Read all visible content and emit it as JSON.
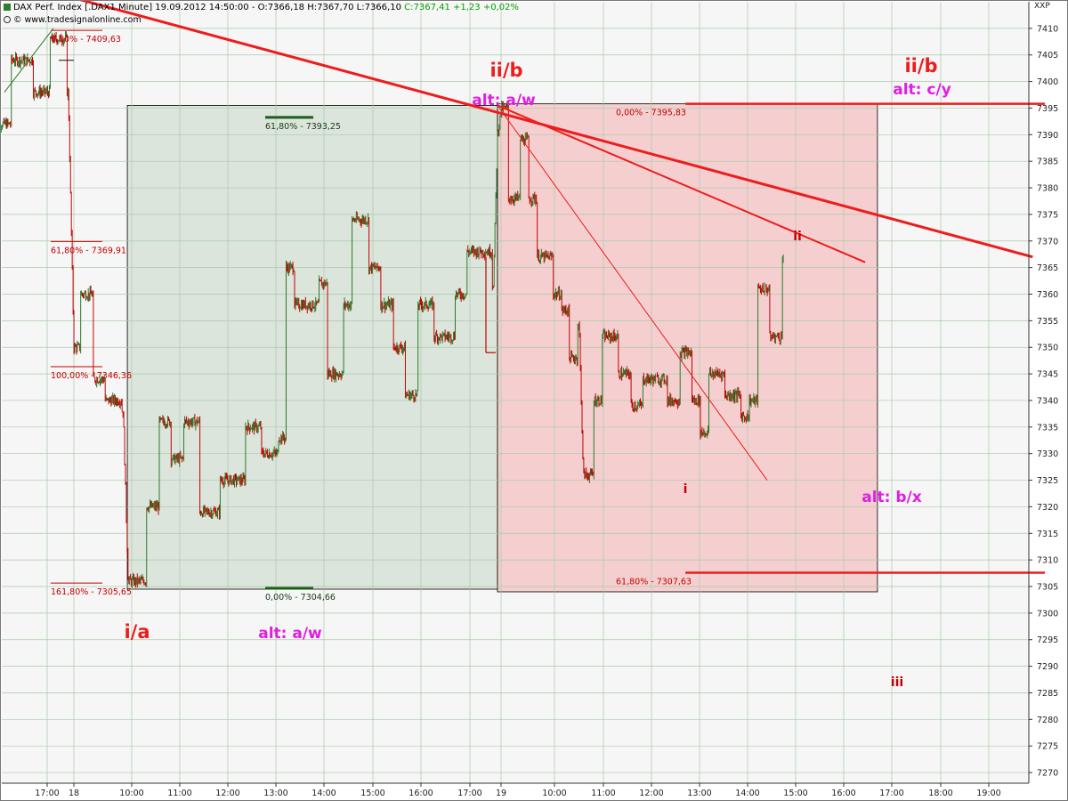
{
  "header": {
    "symbol": "DAX Perf. Index [.DAX",
    "interval": "1 Minute]",
    "datetime": "19.09.2012 14:50:00",
    "ohlc": "O:7366,18 H:7367,70 L:7366,10",
    "close_change": "C:7367,41 +1,23 +0,02%",
    "source": "© www.tradesignalonline.com",
    "unit": "XXP"
  },
  "colors": {
    "background": "#f6f6f6",
    "grid": "#a9c9a9",
    "green_box": "#dbe5db",
    "red_box": "#f5cfcf",
    "up_candle": "#2a7a2a",
    "down_candle": "#c40000",
    "trendline": "#ee1c1c",
    "fib_text": "#c40000",
    "wave_red": "#ee1c1c",
    "wave_magenta": "#e01ee0",
    "fib_green": "#1a5e1a"
  },
  "chart_data": {
    "type": "candlestick",
    "title": "DAX Perf. Index [.DAX 1 Minute]",
    "ylim": [
      7268,
      7415
    ],
    "y_ticks": [
      7270,
      7275,
      7280,
      7285,
      7290,
      7295,
      7300,
      7305,
      7310,
      7315,
      7320,
      7325,
      7330,
      7335,
      7340,
      7345,
      7350,
      7355,
      7360,
      7365,
      7370,
      7375,
      7380,
      7385,
      7390,
      7395,
      7400,
      7405,
      7410
    ],
    "x_ticks": [
      "17:00",
      "18",
      "10:00",
      "11:00",
      "12:00",
      "13:00",
      "14:00",
      "15:00",
      "16:00",
      "17:00",
      "19",
      "10:00",
      "11:00",
      "12:00",
      "13:00",
      "14:00",
      "15:00",
      "16:00",
      "17:00",
      "18:00",
      "19:00"
    ],
    "grid": true,
    "price_path": [
      {
        "t": "17 16:24",
        "price": 7392
      },
      {
        "t": "17 16:40",
        "price": 7404
      },
      {
        "t": "17 17:00",
        "price": 7398
      },
      {
        "t": "17 17:15",
        "price": 7408
      },
      {
        "t": "17 17:30",
        "price": 7398
      },
      {
        "t": "18 09:00",
        "price": 7350
      },
      {
        "t": "18 09:10",
        "price": 7360
      },
      {
        "t": "18 09:25",
        "price": 7344
      },
      {
        "t": "18 09:40",
        "price": 7340
      },
      {
        "t": "18 10:00",
        "price": 7338
      },
      {
        "t": "18 10:06",
        "price": 7306
      },
      {
        "t": "18 10:30",
        "price": 7320
      },
      {
        "t": "18 10:45",
        "price": 7336
      },
      {
        "t": "18 11:00",
        "price": 7329
      },
      {
        "t": "18 11:15",
        "price": 7336
      },
      {
        "t": "18 11:35",
        "price": 7319
      },
      {
        "t": "18 12:00",
        "price": 7325
      },
      {
        "t": "18 12:30",
        "price": 7335
      },
      {
        "t": "18 12:50",
        "price": 7330
      },
      {
        "t": "18 13:10",
        "price": 7333
      },
      {
        "t": "18 13:20",
        "price": 7365
      },
      {
        "t": "18 13:30",
        "price": 7358
      },
      {
        "t": "18 14:00",
        "price": 7362
      },
      {
        "t": "18 14:10",
        "price": 7345
      },
      {
        "t": "18 14:30",
        "price": 7358
      },
      {
        "t": "18 14:40",
        "price": 7374
      },
      {
        "t": "18 15:00",
        "price": 7365
      },
      {
        "t": "18 15:15",
        "price": 7358
      },
      {
        "t": "18 15:30",
        "price": 7350
      },
      {
        "t": "18 15:45",
        "price": 7341
      },
      {
        "t": "18 16:00",
        "price": 7358
      },
      {
        "t": "18 16:20",
        "price": 7352
      },
      {
        "t": "18 16:45",
        "price": 7360
      },
      {
        "t": "18 17:00",
        "price": 7368
      },
      {
        "t": "18 17:30",
        "price": 7362
      },
      {
        "t": "19 09:00",
        "price": 7390
      },
      {
        "t": "19 09:05",
        "price": 7395
      },
      {
        "t": "19 09:15",
        "price": 7378
      },
      {
        "t": "19 09:30",
        "price": 7389
      },
      {
        "t": "19 09:40",
        "price": 7378
      },
      {
        "t": "19 09:50",
        "price": 7367
      },
      {
        "t": "19 10:10",
        "price": 7360
      },
      {
        "t": "19 10:20",
        "price": 7357
      },
      {
        "t": "19 10:30",
        "price": 7348
      },
      {
        "t": "19 10:40",
        "price": 7354
      },
      {
        "t": "19 10:45",
        "price": 7326
      },
      {
        "t": "19 11:00",
        "price": 7340
      },
      {
        "t": "19 11:10",
        "price": 7352
      },
      {
        "t": "19 11:30",
        "price": 7345
      },
      {
        "t": "19 11:45",
        "price": 7339
      },
      {
        "t": "19 12:00",
        "price": 7344
      },
      {
        "t": "19 12:30",
        "price": 7340
      },
      {
        "t": "19 12:45",
        "price": 7349
      },
      {
        "t": "19 13:00",
        "price": 7340
      },
      {
        "t": "19 13:10",
        "price": 7334
      },
      {
        "t": "19 13:20",
        "price": 7345
      },
      {
        "t": "19 13:40",
        "price": 7341
      },
      {
        "t": "19 14:00",
        "price": 7337
      },
      {
        "t": "19 14:10",
        "price": 7340
      },
      {
        "t": "19 14:20",
        "price": 7361
      },
      {
        "t": "19 14:35",
        "price": 7352
      },
      {
        "t": "19 14:50",
        "price": 7367
      }
    ],
    "zones": [
      {
        "name": "green-zone",
        "from": "18 10:05",
        "to": "19 09:00",
        "high": 7395.5,
        "low": 7304.5
      },
      {
        "name": "red-zone",
        "from": "19 09:00",
        "to": "19 16:45",
        "high": 7395.8,
        "low": 7304.0
      }
    ],
    "fib_levels": [
      {
        "label": "0,00% - 7409,63",
        "price": 7409.63
      },
      {
        "label": "61,80% - 7369,91",
        "price": 7369.91
      },
      {
        "label": "100,00% - 7346,36",
        "price": 7346.36
      },
      {
        "label": "161,80% - 7305,65",
        "price": 7305.65
      },
      {
        "label": "61,80% - 7393,25",
        "price": 7393.25
      },
      {
        "label": "0,00% - 7304,66",
        "price": 7304.66
      },
      {
        "label": "0,00% - 7395,83",
        "price": 7395.83
      },
      {
        "label": "61,80% - 7307,63",
        "price": 7307.63
      }
    ],
    "trendlines": [
      {
        "name": "main-downtrend",
        "from": {
          "t": "17 17:30",
          "price": 7416
        },
        "to": {
          "t": "19 19:55",
          "price": 7367
        }
      },
      {
        "name": "channel-line",
        "from": {
          "t": "19 09:00",
          "price": 7395.5
        },
        "to": {
          "t": "19 16:30",
          "price": 7366
        }
      },
      {
        "name": "steep-line",
        "from": {
          "t": "19 09:00",
          "price": 7395.5
        },
        "to": {
          "t": "19 14:30",
          "price": 7325
        }
      },
      {
        "name": "resistance-7395",
        "from": {
          "t": "19 12:50",
          "price": 7395.8
        },
        "to": {
          "t": "19 20:10",
          "price": 7395.8
        }
      },
      {
        "name": "support-7307",
        "from": {
          "t": "19 12:50",
          "price": 7307.6
        },
        "to": {
          "t": "19 20:10",
          "price": 7307.6
        }
      }
    ],
    "wave_labels": [
      {
        "text": "ii/b",
        "style": "red-large"
      },
      {
        "text": "alt: a/w",
        "style": "magenta"
      },
      {
        "text": "ii/b",
        "style": "red-large"
      },
      {
        "text": "alt: c/y",
        "style": "magenta"
      },
      {
        "text": "i/a",
        "style": "red-large"
      },
      {
        "text": "alt: a/w",
        "style": "magenta"
      },
      {
        "text": "alt: b/x",
        "style": "magenta"
      },
      {
        "text": "ii",
        "style": "red-small"
      },
      {
        "text": "i",
        "style": "red-small"
      },
      {
        "text": "iii",
        "style": "red-small"
      }
    ]
  }
}
